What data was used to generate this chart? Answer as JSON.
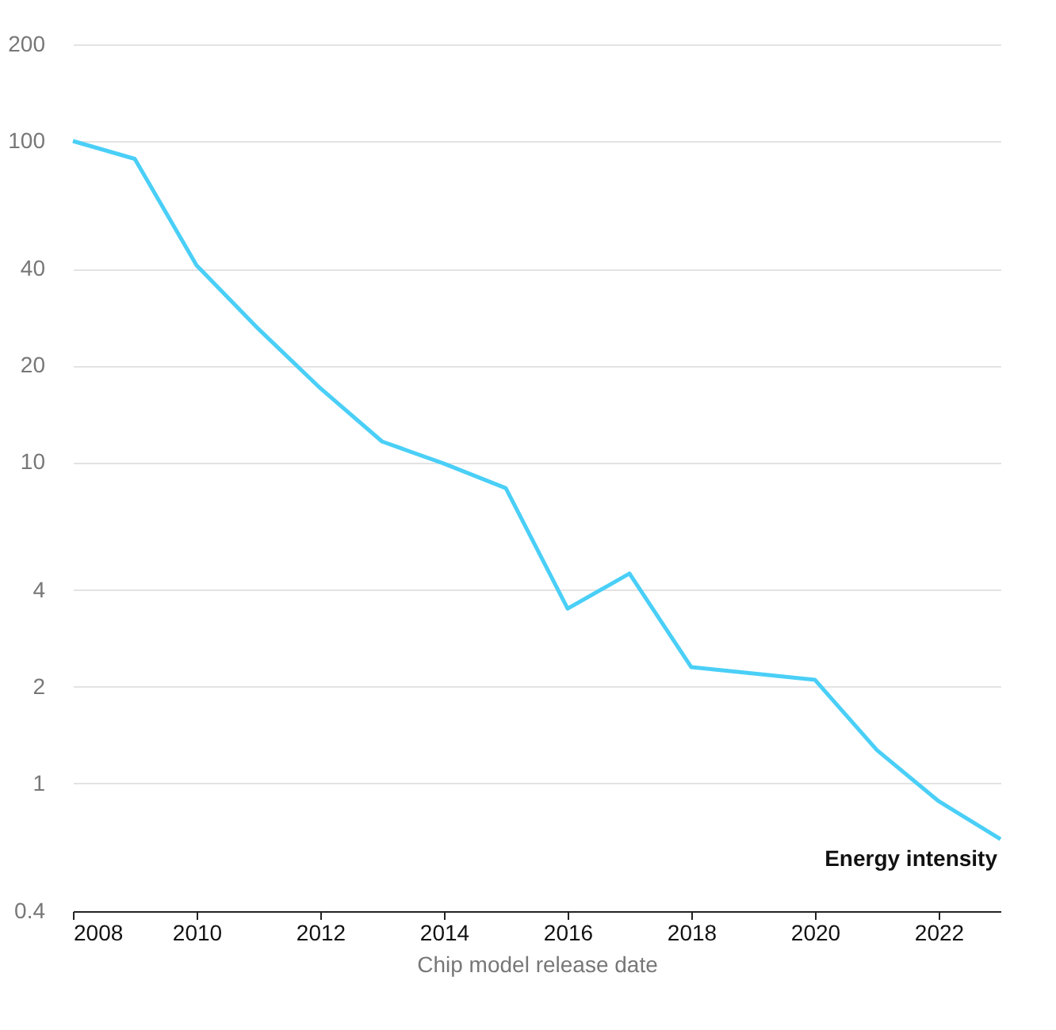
{
  "chart_data": {
    "type": "line",
    "xlabel": "Chip model release date",
    "x": [
      2008,
      2009,
      2010,
      2011,
      2012,
      2013,
      2014,
      2015,
      2016,
      2017,
      2018,
      2019,
      2020,
      2021,
      2022,
      2023
    ],
    "series": [
      {
        "name": "Energy intensity",
        "color": "#4acff7",
        "values": [
          100,
          88,
          41,
          26,
          17,
          11.6,
          9.9,
          8.3,
          3.5,
          4.5,
          2.3,
          2.2,
          2.1,
          1.27,
          0.88,
          0.67
        ]
      }
    ],
    "xlim": [
      2008,
      2023
    ],
    "xticks": [
      2008,
      2010,
      2012,
      2014,
      2016,
      2018,
      2020,
      2022
    ],
    "ylim": [
      0.4,
      200
    ],
    "yticks": [
      0.4,
      1,
      2,
      4,
      10,
      20,
      40,
      100,
      200
    ],
    "log": "y",
    "grid": "y",
    "legend": false,
    "marker": "none",
    "line_style": "solid"
  }
}
